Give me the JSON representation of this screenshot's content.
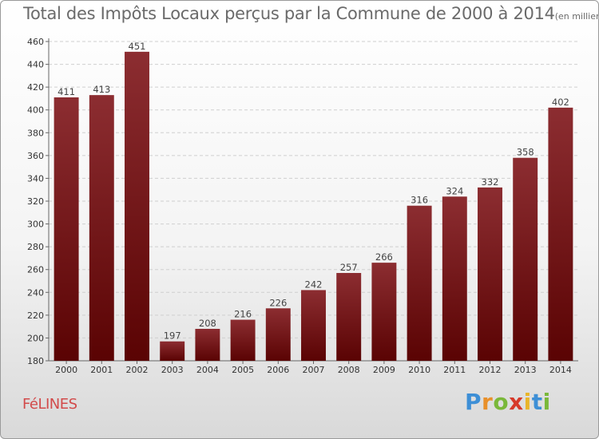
{
  "title": "Total des Impôts Locaux perçus par la Commune de 2000 à 2014",
  "title_unit": "(en milliers d'€)",
  "commune": "FéLINES",
  "logo": {
    "letters": [
      "P",
      "r",
      "o",
      "x",
      "i",
      "t",
      "i"
    ],
    "colors": [
      "#3d8fd6",
      "#e8902a",
      "#7ab83a",
      "#d63a2a",
      "#e8b52a",
      "#3d8fd6",
      "#7ab83a"
    ]
  },
  "colors": {
    "bar_top": "#8c2d31",
    "bar_bottom": "#5a0303",
    "title": "#6a6a6a",
    "commune": "#d24a4a"
  },
  "chart_data": {
    "type": "bar",
    "title": "Total des Impôts Locaux perçus par la Commune de 2000 à 2014",
    "ylabel": "en milliers d'€",
    "xlabel": "",
    "categories": [
      "2000",
      "2001",
      "2002",
      "2003",
      "2004",
      "2005",
      "2006",
      "2007",
      "2008",
      "2009",
      "2010",
      "2011",
      "2012",
      "2013",
      "2014"
    ],
    "values": [
      411,
      413,
      451,
      197,
      208,
      216,
      226,
      242,
      257,
      266,
      316,
      324,
      332,
      358,
      402
    ],
    "ylim": [
      180,
      460
    ],
    "yticks": [
      180,
      200,
      220,
      240,
      260,
      280,
      300,
      320,
      340,
      360,
      380,
      400,
      420,
      440,
      460
    ],
    "grid": true
  }
}
